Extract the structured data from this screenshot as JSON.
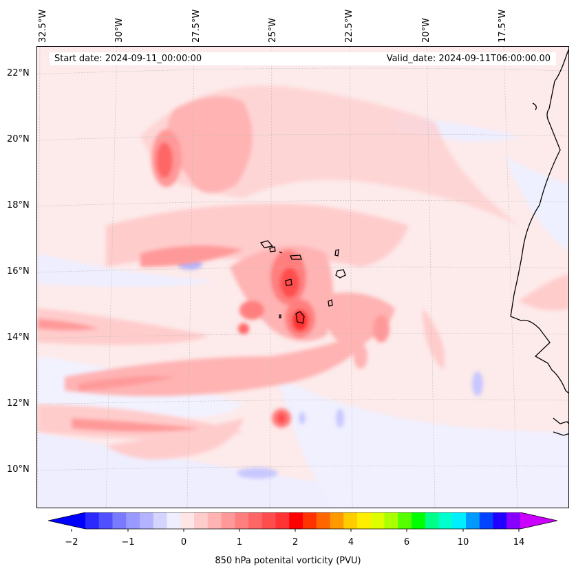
{
  "map": {
    "start_date": "Start date: 2024-09-11_00:00:00",
    "valid_date": "Valid_date: 2024-09-11T06:00:00.00",
    "lon_labels": [
      "32.5°W",
      "30°W",
      "27.5°W",
      "25°W",
      "22.5°W",
      "20°W",
      "17.5°W"
    ],
    "lat_labels": [
      "22°N",
      "20°N",
      "18°N",
      "16°N",
      "14°N",
      "12°N",
      "10°N"
    ],
    "background_color": "#fdecec"
  },
  "colorbar": {
    "title": "850 hPa potenital vorticity (PVU)",
    "tick_labels": [
      "−2",
      "−1",
      "0",
      "1",
      "2",
      "4",
      "6",
      "10",
      "14"
    ],
    "colors": [
      "#0000ff",
      "#2a2aff",
      "#5050ff",
      "#7a7aff",
      "#9999ff",
      "#b3b3ff",
      "#d4d4ff",
      "#eeeeff",
      "#ffe6e6",
      "#ffcccc",
      "#ffb3b3",
      "#ff9999",
      "#ff7f7f",
      "#ff6666",
      "#ff4d4d",
      "#ff3333",
      "#ff0000",
      "#ff3300",
      "#ff6600",
      "#ff9900",
      "#ffcc00",
      "#ffee00",
      "#ddff00",
      "#aaff00",
      "#55ff00",
      "#00ff00",
      "#00ff88",
      "#00ffcc",
      "#00eeff",
      "#0099ff",
      "#0044ff",
      "#2200ff",
      "#8800ff",
      "#cc00ff"
    ]
  }
}
